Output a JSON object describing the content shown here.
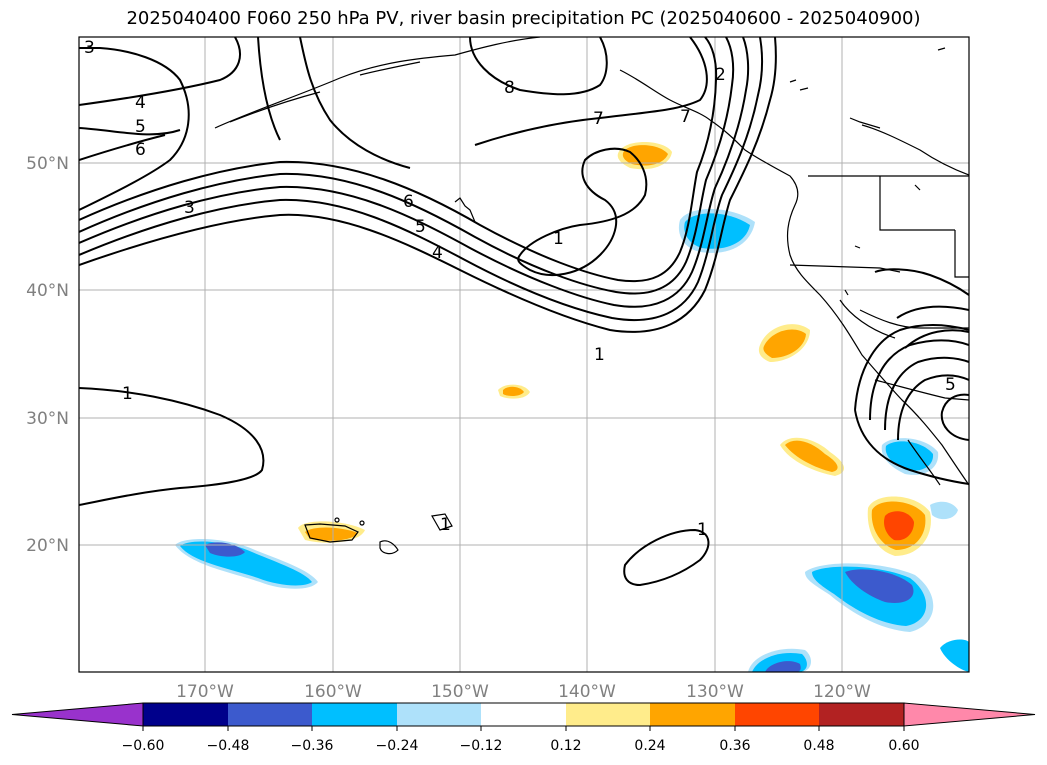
{
  "title": "2025040400 F060 250 hPa PV, river basin precipitation PC (2025040600 - 2025040900)",
  "lat_ticks": [
    "50°N",
    "40°N",
    "30°N",
    "20°N"
  ],
  "lon_ticks": [
    "170°W",
    "160°W",
    "150°W",
    "140°W",
    "130°W",
    "120°W"
  ],
  "colorbar": {
    "ticks": [
      "−0.60",
      "−0.48",
      "−0.36",
      "−0.24",
      "−0.12",
      "0.12",
      "0.24",
      "0.36",
      "0.48",
      "0.60"
    ],
    "colors": [
      "#9932cc",
      "#00008b",
      "#3c5acd",
      "#00bfff",
      "#aee1fa",
      "#ffffff",
      "#ffec8b",
      "#ffa500",
      "#ff4500",
      "#b22222",
      "#ff88aa"
    ]
  },
  "contour_labels": [
    "3",
    "4",
    "5",
    "6",
    "3",
    "6",
    "5",
    "4",
    "8",
    "7",
    "2",
    "7",
    "1",
    "1",
    "1",
    "1",
    "1",
    "5"
  ],
  "colors": {
    "grid": "#b0b0b0",
    "contour": "#000000",
    "tick_text": "#808080"
  }
}
